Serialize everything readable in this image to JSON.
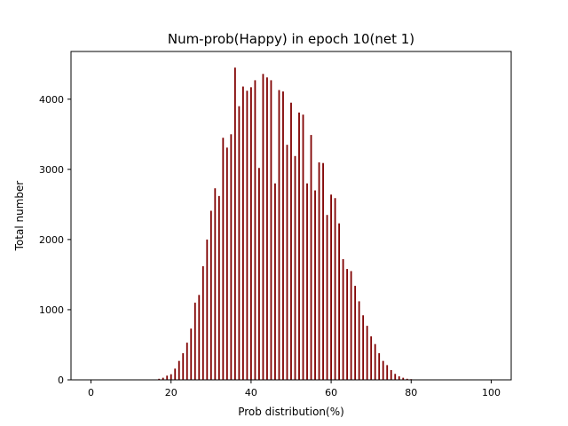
{
  "chart_data": {
    "type": "bar",
    "title": "Num-prob(Happy) in epoch 10(net 1)",
    "xlabel": "Prob distribution(%)",
    "ylabel": "Total number",
    "xlim": [
      -5,
      105
    ],
    "ylim": [
      0,
      4680
    ],
    "xticks": [
      0,
      20,
      40,
      60,
      80,
      100
    ],
    "yticks": [
      0,
      1000,
      2000,
      3000,
      4000
    ],
    "bar_color": "#800000",
    "x": [
      16,
      17,
      18,
      19,
      20,
      21,
      22,
      23,
      24,
      25,
      26,
      27,
      28,
      29,
      30,
      31,
      32,
      33,
      34,
      35,
      36,
      37,
      38,
      39,
      40,
      41,
      42,
      43,
      44,
      45,
      46,
      47,
      48,
      49,
      50,
      51,
      52,
      53,
      54,
      55,
      56,
      57,
      58,
      59,
      60,
      61,
      62,
      63,
      64,
      65,
      66,
      67,
      68,
      69,
      70,
      71,
      72,
      73,
      74,
      75,
      76,
      77,
      78,
      79,
      80,
      81
    ],
    "values": [
      5,
      15,
      30,
      60,
      80,
      160,
      270,
      380,
      530,
      730,
      1100,
      1210,
      1620,
      2000,
      2410,
      2730,
      2620,
      3450,
      3310,
      3500,
      4450,
      3900,
      4180,
      4120,
      4170,
      4270,
      3020,
      4360,
      4310,
      4270,
      2800,
      4130,
      4110,
      3350,
      3950,
      3190,
      3810,
      3780,
      2800,
      3490,
      2700,
      3100,
      3090,
      2350,
      2640,
      2590,
      2230,
      1720,
      1580,
      1550,
      1340,
      1120,
      920,
      770,
      620,
      510,
      380,
      270,
      210,
      140,
      85,
      50,
      30,
      15,
      10,
      5
    ]
  }
}
